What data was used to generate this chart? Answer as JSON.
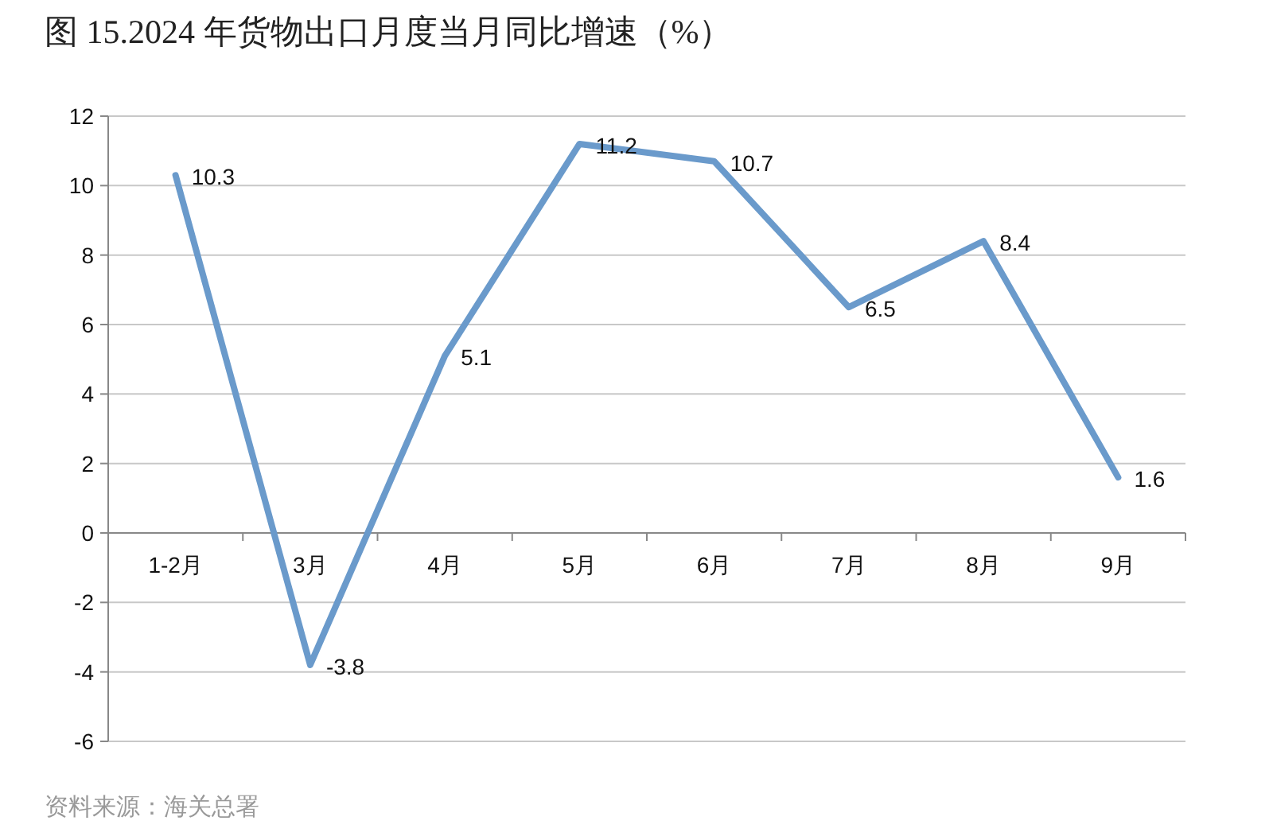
{
  "chart_data": {
    "type": "line",
    "title": "图 15.2024 年货物出口月度当月同比增速（%）",
    "categories": [
      "1-2月",
      "3月",
      "4月",
      "5月",
      "6月",
      "7月",
      "8月",
      "9月"
    ],
    "series": [
      {
        "color": "#6a9acb",
        "values": [
          10.3,
          -3.8,
          5.1,
          11.2,
          10.7,
          6.5,
          8.4,
          1.6
        ]
      }
    ],
    "ylim": [
      -6,
      12
    ],
    "yticks": [
      -6,
      -4,
      -2,
      0,
      2,
      4,
      6,
      8,
      10,
      12
    ],
    "grid": "y",
    "data_labels": true,
    "annotations": [
      "资料来源：海关总署"
    ]
  }
}
